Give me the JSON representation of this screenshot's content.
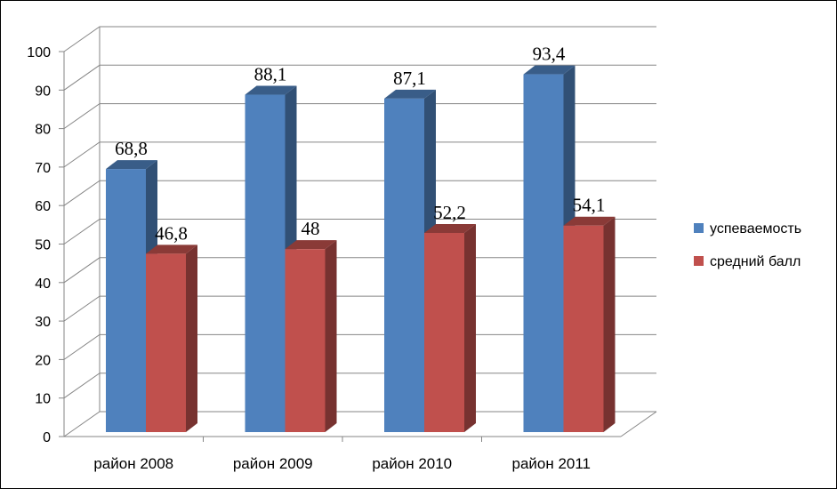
{
  "chart_data": {
    "type": "bar",
    "categories": [
      "район 2008",
      "район 2009",
      "район 2010",
      "район 2011"
    ],
    "series": [
      {
        "name": "успеваемость",
        "values": [
          68.8,
          88.1,
          87.1,
          93.4
        ],
        "labels": [
          "68,8",
          "88,1",
          "87,1",
          "93,4"
        ],
        "color": "#4F81BD"
      },
      {
        "name": "средний балл",
        "values": [
          46.8,
          48,
          52.2,
          54.1
        ],
        "labels": [
          "46,8",
          "48",
          "52,2",
          "54,1"
        ],
        "color": "#C0504D"
      }
    ],
    "yticks": [
      "0",
      "10",
      "20",
      "30",
      "40",
      "50",
      "60",
      "70",
      "80",
      "90",
      "100"
    ],
    "ylim": [
      0,
      100
    ],
    "grid": true,
    "legend_position": "right"
  }
}
